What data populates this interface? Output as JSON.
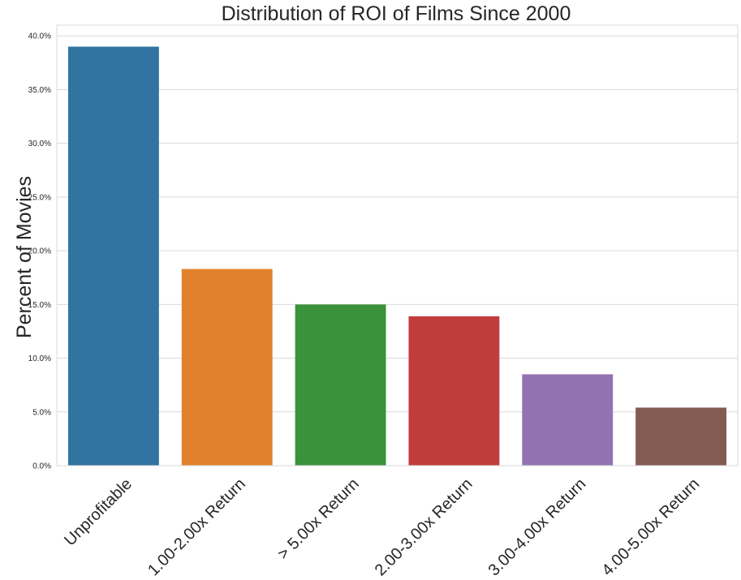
{
  "chart_data": {
    "type": "bar",
    "title": "Distribution of ROI of Films Since 2000",
    "xlabel": "",
    "ylabel": "Percent of Movies",
    "categories": [
      "Unprofitable",
      "1.00-2.00x Return",
      "> 5.00x Return",
      "2.00-3.00x Return",
      "3.00-4.00x Return",
      "4.00-5.00x Return"
    ],
    "values": [
      39.0,
      18.3,
      15.0,
      13.9,
      8.5,
      5.4
    ],
    "colors": [
      "#3274a1",
      "#e1812c",
      "#3a923a",
      "#c03d3e",
      "#9372b2",
      "#845b53"
    ],
    "ylim": [
      0,
      41
    ],
    "yticks": [
      0,
      5,
      10,
      15,
      20,
      25,
      30,
      35,
      40
    ],
    "ytick_labels": [
      "0.0%",
      "5.0%",
      "10.0%",
      "15.0%",
      "20.0%",
      "25.0%",
      "30.0%",
      "35.0%",
      "40.0%"
    ],
    "grid": true,
    "legend": "none"
  }
}
